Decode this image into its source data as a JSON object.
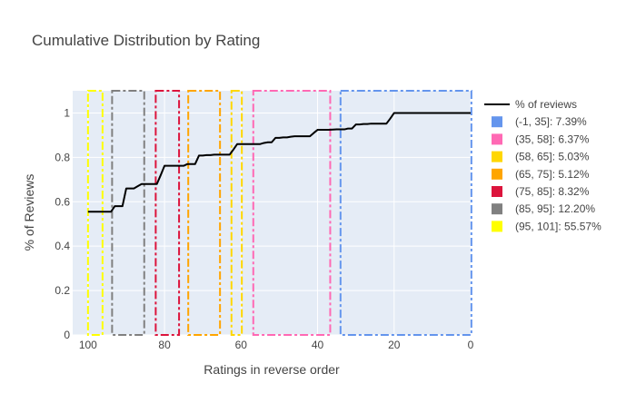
{
  "chart_data": {
    "type": "line",
    "title": "Cumulative Distribution by Rating",
    "xlabel": "Ratings in reverse order",
    "ylabel": "% of Reviews",
    "xlim": [
      104,
      0
    ],
    "ylim": [
      0,
      1.1
    ],
    "x_ticks": [
      100,
      80,
      60,
      40,
      20,
      0
    ],
    "y_ticks": [
      0,
      0.2,
      0.4,
      0.6,
      0.8,
      1
    ],
    "y_tick_labels": [
      "0",
      "0.2",
      "0.4",
      "0.6",
      "0.8",
      "1"
    ],
    "grid": true,
    "legend_position": "right",
    "colors": {
      "plot_bg": "#e5ecf6",
      "line": "#000000",
      "text": "#444444",
      "title": "#444444"
    },
    "series": [
      {
        "name": "% of reviews",
        "x": [
          100,
          94,
          93,
          92,
          91,
          90,
          89,
          88,
          87,
          86,
          85,
          84,
          83,
          82,
          81,
          80,
          79,
          78,
          77,
          76,
          75,
          74,
          73,
          72,
          71,
          70,
          69,
          68,
          67,
          66,
          65,
          64,
          63,
          62,
          61,
          60,
          59,
          58,
          57,
          56,
          55,
          54,
          53,
          52,
          51,
          50,
          49,
          48,
          47,
          46,
          45,
          44,
          43,
          42,
          41,
          40,
          39,
          38,
          37,
          36,
          35,
          34,
          33,
          32,
          31,
          30,
          29,
          28,
          27,
          26,
          25,
          24,
          23,
          22,
          21,
          20,
          19,
          18,
          17,
          16,
          15,
          14,
          13,
          12,
          11,
          10,
          9,
          8,
          7,
          6,
          5,
          4,
          3,
          2,
          1,
          0
        ],
        "y": [
          0.555,
          0.555,
          0.58,
          0.58,
          0.58,
          0.66,
          0.66,
          0.66,
          0.67,
          0.68,
          0.68,
          0.68,
          0.68,
          0.68,
          0.72,
          0.762,
          0.762,
          0.762,
          0.762,
          0.762,
          0.762,
          0.77,
          0.77,
          0.77,
          0.808,
          0.808,
          0.81,
          0.81,
          0.812,
          0.812,
          0.812,
          0.812,
          0.812,
          0.835,
          0.86,
          0.86,
          0.86,
          0.86,
          0.86,
          0.86,
          0.86,
          0.865,
          0.868,
          0.868,
          0.888,
          0.888,
          0.89,
          0.89,
          0.893,
          0.895,
          0.895,
          0.895,
          0.895,
          0.895,
          0.91,
          0.924,
          0.924,
          0.924,
          0.924,
          0.925,
          0.926,
          0.926,
          0.926,
          0.93,
          0.93,
          0.948,
          0.948,
          0.95,
          0.95,
          0.952,
          0.952,
          0.952,
          0.952,
          0.952,
          0.975,
          1.0,
          1.0,
          1.0,
          1.0,
          1.0,
          1.0,
          1.0,
          1.0,
          1.0,
          1.0,
          1.0,
          1.0,
          1.0,
          1.0,
          1.0,
          1.0,
          1.0,
          1.0,
          1.0,
          1.0,
          1.0
        ]
      }
    ],
    "ranges": [
      {
        "label": "(-1, 35]: 7.39%",
        "x0": 34,
        "x1": -0.2,
        "color": "#6495ED",
        "dash": "dashdot"
      },
      {
        "label": "(35, 58]: 6.37%",
        "x0": 56.8,
        "x1": 36.7,
        "color": "#FF69B4",
        "dash": "dashdot"
      },
      {
        "label": "(58, 65]: 5.03%",
        "x0": 62.5,
        "x1": 59.8,
        "color": "#FFD700",
        "dash": "dashdot"
      },
      {
        "label": "(65, 75]: 5.12%",
        "x0": 73.8,
        "x1": 65.5,
        "color": "#FFA500",
        "dash": "dashdot"
      },
      {
        "label": "(75, 85]: 8.32%",
        "x0": 82.3,
        "x1": 76.2,
        "color": "#DC143C",
        "dash": "dashdot"
      },
      {
        "label": "(85, 95]: 12.20%",
        "x0": 93.7,
        "x1": 85.3,
        "color": "#808080",
        "dash": "dashdot"
      },
      {
        "label": "(95, 101]: 55.57%",
        "x0": 100,
        "x1": 96.2,
        "color": "#FFFF00",
        "dash": "dashdot"
      }
    ]
  }
}
